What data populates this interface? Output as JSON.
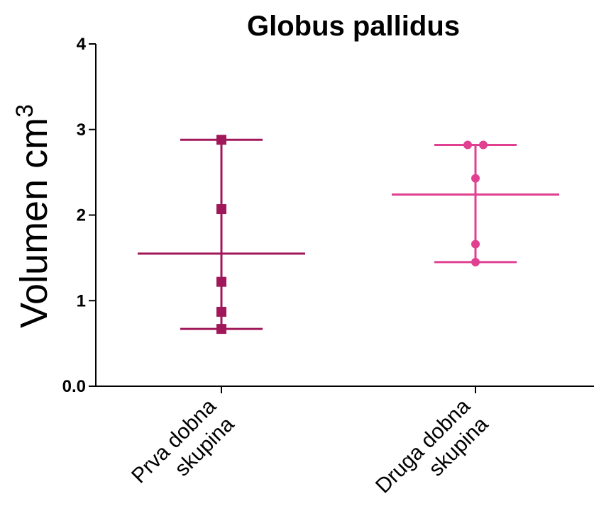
{
  "chart_data": {
    "type": "scatter",
    "title": "Globus pallidus",
    "ylabel": "Volumen cm",
    "ylabel_superscript": "3",
    "xlabel": "",
    "ylim": [
      0,
      4
    ],
    "yticks": [
      "0.0",
      "1",
      "2",
      "3",
      "4"
    ],
    "ytick_values": [
      0,
      1,
      2,
      3,
      4
    ],
    "grid": false,
    "legend": "none",
    "categories": [
      {
        "line1": "Prva dobna",
        "line2": "skupina"
      },
      {
        "line1": "Druga dobna",
        "line2": "skupina"
      }
    ],
    "series": [
      {
        "category_index": 0,
        "marker": "square",
        "color": "#a0175a",
        "values": [
          2.88,
          2.07,
          1.22,
          0.87,
          0.67
        ],
        "mean": 1.55,
        "range": [
          0.67,
          2.88
        ]
      },
      {
        "category_index": 1,
        "marker": "circle",
        "color": "#e0408f",
        "values": [
          2.82,
          2.82,
          2.43,
          1.66,
          1.45
        ],
        "mean": 2.24,
        "range": [
          1.45,
          2.82
        ]
      }
    ]
  }
}
